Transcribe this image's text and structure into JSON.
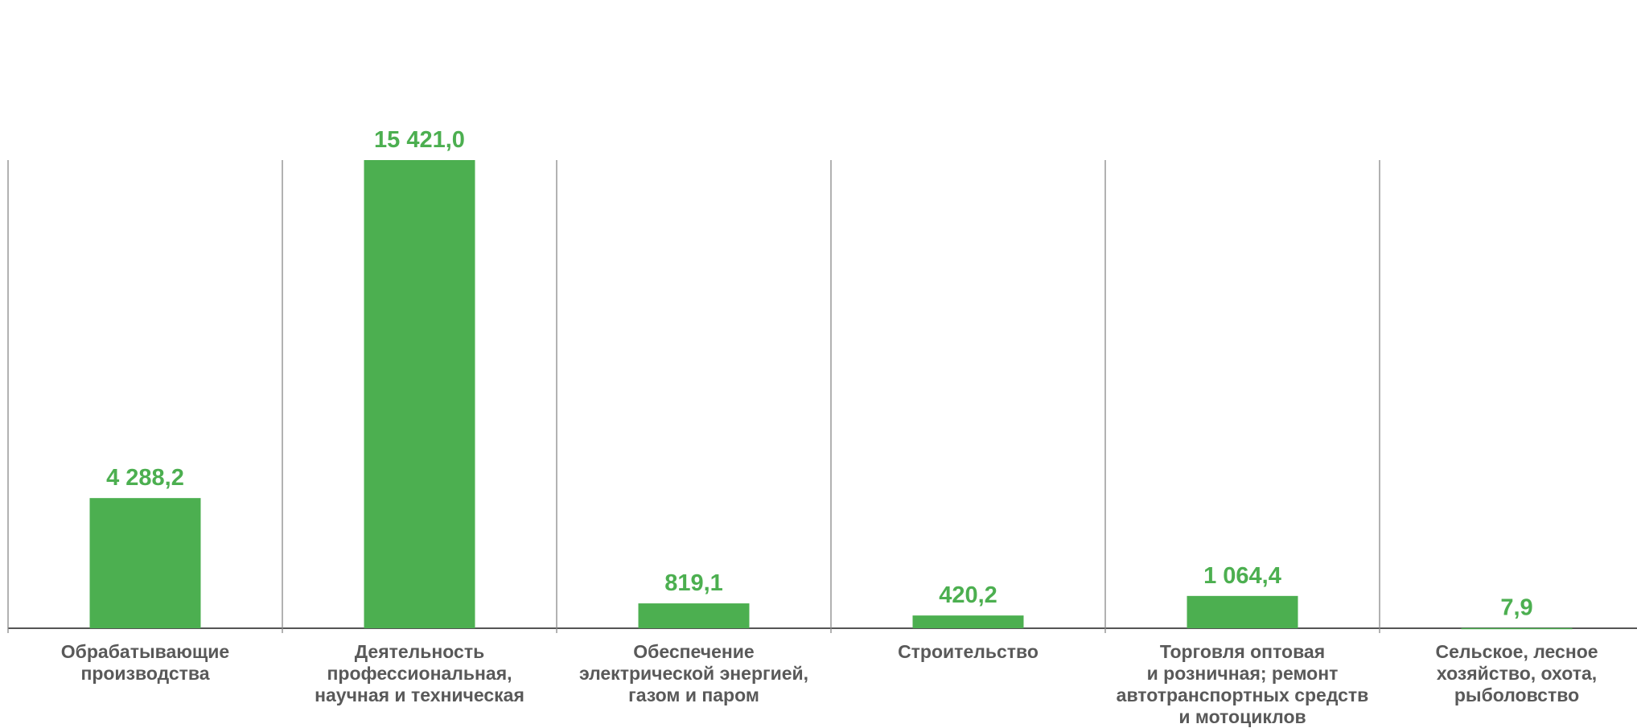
{
  "chart_data": {
    "type": "bar",
    "categories": [
      "Обрабатывающие\nпроизводства",
      "Деятельность\nпрофессиональная,\nнаучная и техническая",
      "Обеспечение\nэлектрической энергией,\nгазом и паром",
      "Строительство",
      "Торговля оптовая\nи розничная; ремонт\nавтотранспортных средств\nи мотоциклов",
      "Сельское, лесное\nхозяйство, охота,\nрыболовство"
    ],
    "values": [
      4288.2,
      15421.0,
      819.1,
      420.2,
      1064.4,
      7.9
    ],
    "value_labels": [
      "4 288,2",
      "15 421,0",
      "819,1",
      "420,2",
      "1 064,4",
      "7,9"
    ],
    "color": "#4caf50"
  }
}
